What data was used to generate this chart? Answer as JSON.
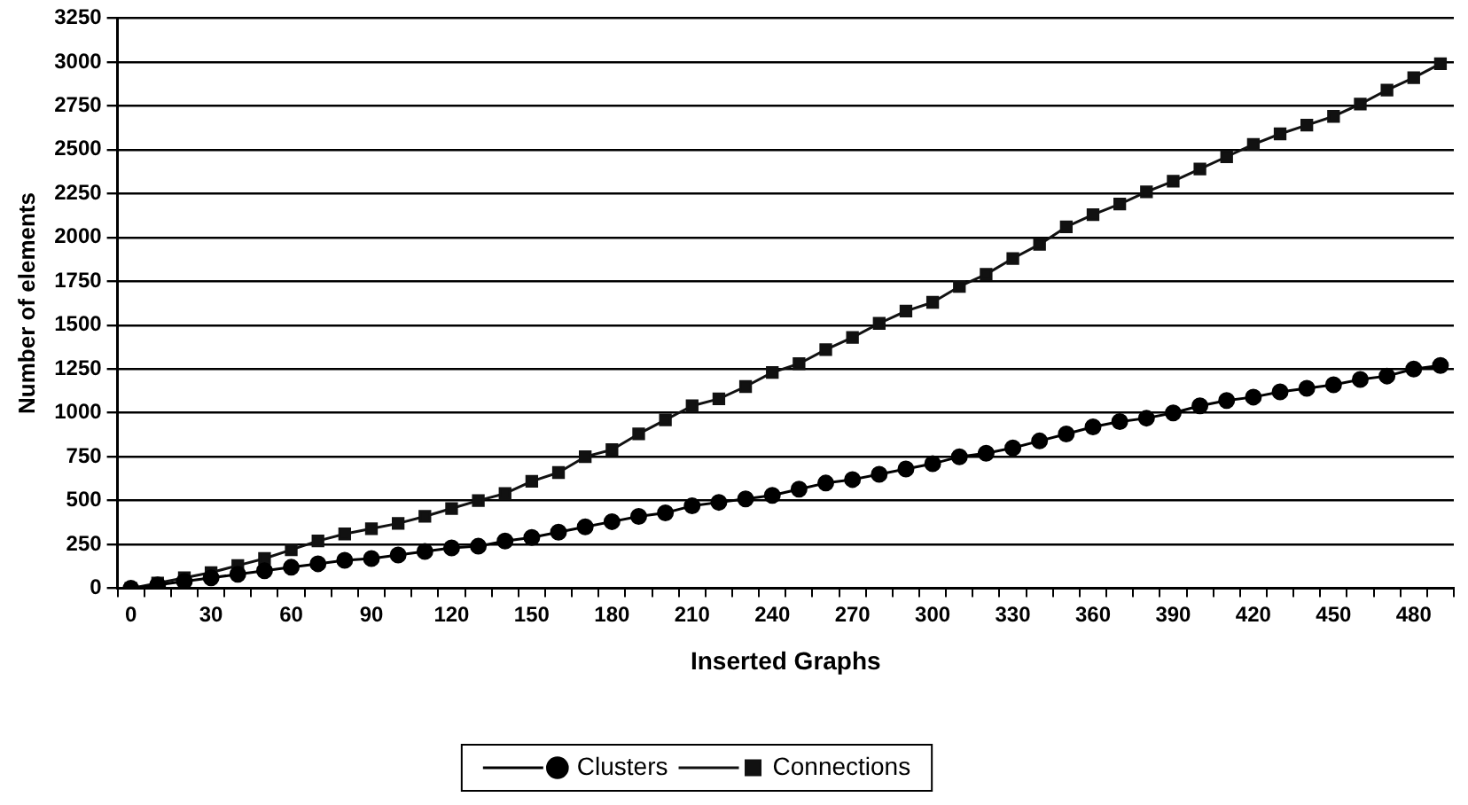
{
  "chart_data": {
    "type": "line",
    "xlabel": "Inserted Graphs",
    "ylabel": "Number of elements",
    "categories": [
      "0",
      null,
      null,
      "30",
      null,
      null,
      "60",
      null,
      null,
      "90",
      null,
      null,
      "120",
      null,
      null,
      "150",
      null,
      null,
      "180",
      null,
      null,
      "210",
      null,
      null,
      "240",
      null,
      null,
      "270",
      null,
      null,
      "300",
      null,
      null,
      "330",
      null,
      null,
      "360",
      null,
      null,
      "390",
      null,
      null,
      "420",
      null,
      null,
      "450",
      null,
      null,
      "480",
      null
    ],
    "series": [
      {
        "name": "Clusters",
        "color": "#000000",
        "marker": "circle",
        "values": [
          0,
          20,
          40,
          60,
          80,
          100,
          120,
          140,
          160,
          170,
          190,
          210,
          230,
          240,
          270,
          290,
          320,
          350,
          380,
          410,
          430,
          470,
          490,
          510,
          530,
          565,
          600,
          620,
          650,
          680,
          710,
          750,
          770,
          800,
          840,
          880,
          920,
          950,
          970,
          1000,
          1040,
          1070,
          1090,
          1120,
          1140,
          1160,
          1190,
          1210,
          1250,
          1270
        ]
      },
      {
        "name": "Connections",
        "color": "#111111",
        "marker": "square",
        "values": [
          0,
          30,
          60,
          90,
          130,
          170,
          220,
          270,
          310,
          340,
          370,
          410,
          455,
          500,
          540,
          610,
          660,
          750,
          790,
          880,
          960,
          1040,
          1080,
          1150,
          1230,
          1280,
          1360,
          1430,
          1510,
          1580,
          1630,
          1720,
          1790,
          1880,
          1960,
          2060,
          2130,
          2190,
          2260,
          2320,
          2390,
          2460,
          2530,
          2590,
          2640,
          2690,
          2760,
          2840,
          2910,
          2990
        ]
      }
    ],
    "ylim": [
      0,
      3250
    ],
    "yticks": [
      0,
      250,
      500,
      750,
      1000,
      1250,
      1500,
      1750,
      2000,
      2250,
      2500,
      2750,
      3000,
      3250
    ],
    "grid": "y",
    "legend": "bottom",
    "line_style": "solid"
  }
}
